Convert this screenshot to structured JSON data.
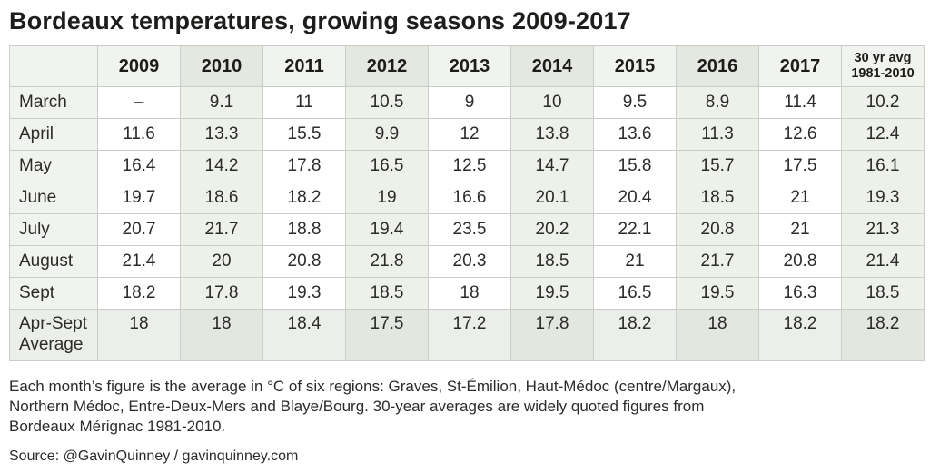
{
  "title": "Bordeaux temperatures, growing seasons 2009-2017",
  "chart_data": {
    "type": "table",
    "title": "Bordeaux temperatures, growing seasons 2009-2017",
    "columns": [
      "2009",
      "2010",
      "2011",
      "2012",
      "2013",
      "2014",
      "2015",
      "2016",
      "2017",
      "30 yr avg 1981-2010"
    ],
    "rows": [
      {
        "label": "March",
        "values": [
          "–",
          "9.1",
          "11",
          "10.5",
          "9",
          "10",
          "9.5",
          "8.9",
          "11.4",
          "10.2"
        ]
      },
      {
        "label": "April",
        "values": [
          "11.6",
          "13.3",
          "15.5",
          "9.9",
          "12",
          "13.8",
          "13.6",
          "11.3",
          "12.6",
          "12.4"
        ]
      },
      {
        "label": "May",
        "values": [
          "16.4",
          "14.2",
          "17.8",
          "16.5",
          "12.5",
          "14.7",
          "15.8",
          "15.7",
          "17.5",
          "16.1"
        ]
      },
      {
        "label": "June",
        "values": [
          "19.7",
          "18.6",
          "18.2",
          "19",
          "16.6",
          "20.1",
          "20.4",
          "18.5",
          "21",
          "19.3"
        ]
      },
      {
        "label": "July",
        "values": [
          "20.7",
          "21.7",
          "18.8",
          "19.4",
          "23.5",
          "20.2",
          "22.1",
          "20.8",
          "21",
          "21.3"
        ]
      },
      {
        "label": "August",
        "values": [
          "21.4",
          "20",
          "20.8",
          "21.8",
          "20.3",
          "18.5",
          "21",
          "21.7",
          "20.8",
          "21.4"
        ]
      },
      {
        "label": "Sept",
        "values": [
          "18.2",
          "17.8",
          "19.3",
          "18.5",
          "18",
          "19.5",
          "16.5",
          "19.5",
          "16.3",
          "18.5"
        ]
      },
      {
        "label": "Apr-Sept Average",
        "values": [
          "18",
          "18",
          "18.4",
          "17.5",
          "17.2",
          "17.8",
          "18.2",
          "18",
          "18.2",
          "18.2"
        ]
      }
    ],
    "units": "°C",
    "layout": {
      "shaded_columns": [
        "2010",
        "2012",
        "2014",
        "2016",
        "30 yr avg 1981-2010"
      ],
      "summary_row": "Apr-Sept Average"
    }
  },
  "table": {
    "year_headers": [
      "2009",
      "2010",
      "2011",
      "2012",
      "2013",
      "2014",
      "2015",
      "2016",
      "2017"
    ],
    "avg_header": {
      "line1": "30 yr avg",
      "line2": "1981-2010"
    }
  },
  "footnote_lines": [
    "Each month’s figure is the average in °C of six regions: Graves, St-Émilion, Haut-Médoc (centre/Margaux),",
    "Northern Médoc, Entre-Deux-Mers and Blaye/Bourg. 30-year averages are widely quoted figures from",
    "Bordeaux Mérignac 1981-2010."
  ],
  "source": "Source: @GavinQuinney / gavinquinney.com",
  "colors": {
    "border": "#cbcec8",
    "text": "#2b2b2a",
    "title": "#1d1d1b",
    "header_plain": "#f1f3ee",
    "header_shaded": "#e5e8e1",
    "column_shaded": "#eef0ea",
    "row_label_bg": "#f1f3ee",
    "summary_plain": "#ecefe9",
    "summary_shaded": "#e3e7e0"
  }
}
